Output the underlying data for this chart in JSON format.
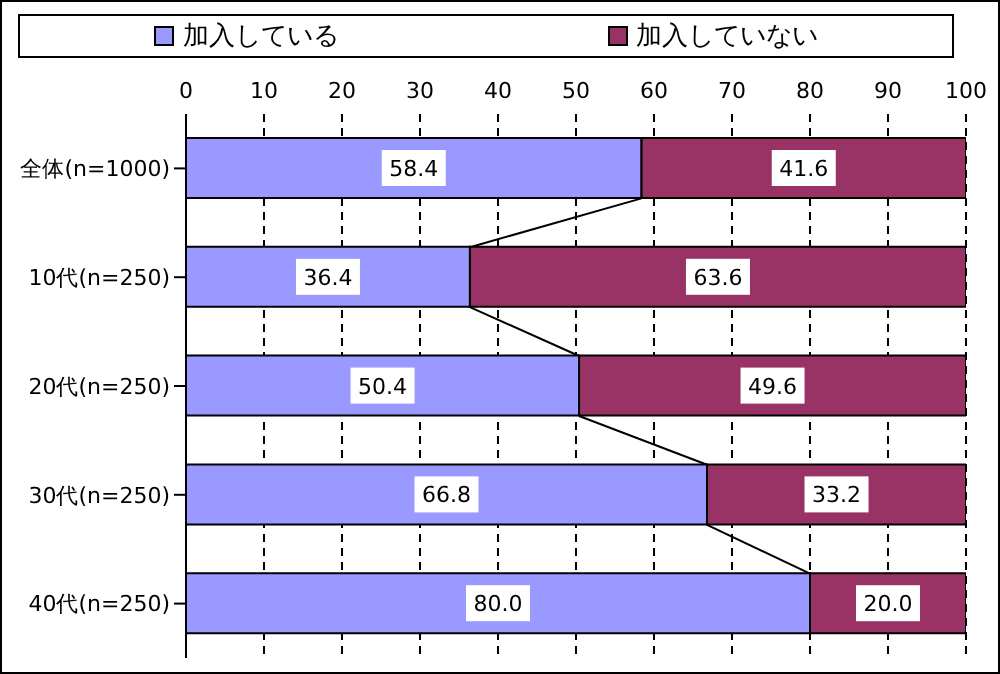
{
  "chart_data": {
    "type": "bar",
    "orientation": "horizontal",
    "stacked": true,
    "categories": [
      "全体(n=1000)",
      "10代(n=250)",
      "20代(n=250)",
      "30代(n=250)",
      "40代(n=250)"
    ],
    "series": [
      {
        "name": "加入している",
        "color": "#9999ff",
        "values": [
          58.4,
          36.4,
          50.4,
          66.8,
          80.0
        ],
        "value_labels": [
          "58.4",
          "36.4",
          "50.4",
          "66.8",
          "80.0"
        ]
      },
      {
        "name": "加入していない",
        "color": "#993366",
        "values": [
          41.6,
          63.6,
          49.6,
          33.2,
          20.0
        ],
        "value_labels": [
          "41.6",
          "63.6",
          "49.6",
          "33.2",
          "20.0"
        ]
      }
    ],
    "xlim": [
      0,
      100
    ],
    "xticks": [
      0,
      10,
      20,
      30,
      40,
      50,
      60,
      70,
      80,
      90,
      100
    ],
    "grid": "x",
    "legend": "top"
  }
}
